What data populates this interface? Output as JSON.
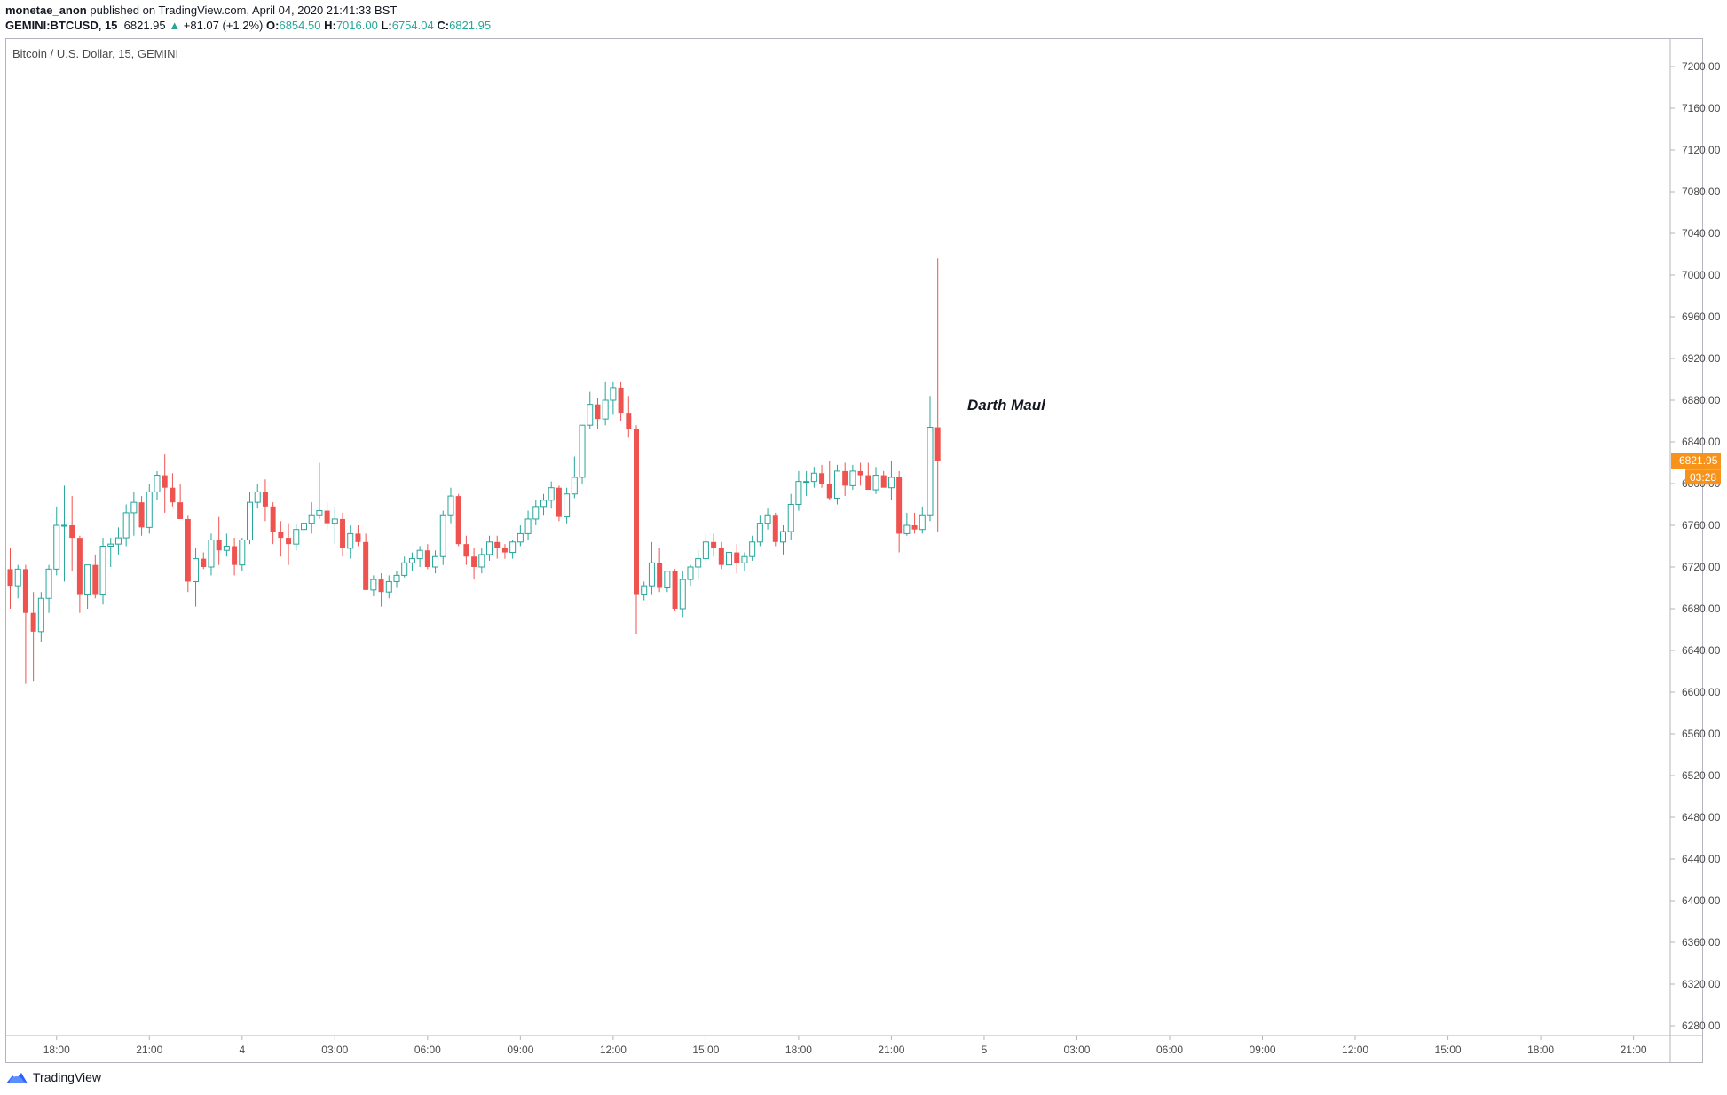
{
  "header": {
    "author": "monetae_anon",
    "published_text": "published on TradingView.com, April 04, 2020 21:41:33 BST",
    "symbol": "GEMINI:BTCUSD, 15",
    "last": "6821.95",
    "change_arrow": "▲",
    "change": "+81.07 (+1.2%)",
    "o_label": "O:",
    "o_value": "6854.50",
    "h_label": "H:",
    "h_value": "7016.00",
    "l_label": "L:",
    "l_value": "6754.04",
    "c_label": "C:",
    "c_value": "6821.95"
  },
  "legend_title": "Bitcoin / U.S. Dollar, 15, GEMINI",
  "annotation": "Darth Maul",
  "footer": {
    "brand": "TradingView"
  },
  "colors": {
    "up": "#26a69a",
    "down": "#ef5350",
    "price_tag": "#f7931a",
    "axis_text": "#4a4a4a"
  },
  "chart_data": {
    "type": "candlestick",
    "ylim": [
      6260,
      7220
    ],
    "yticks": [
      7200,
      7160,
      7120,
      7080,
      7040,
      7000,
      6960,
      6920,
      6880,
      6840,
      6800,
      6760,
      6720,
      6680,
      6640,
      6600,
      6560,
      6520,
      6480,
      6440,
      6400,
      6360,
      6320,
      6280
    ],
    "ytick_labels": [
      "7200.00",
      "7160.00",
      "7120.00",
      "7080.00",
      "7040.00",
      "7000.00",
      "6960.00",
      "6920.00",
      "6880.00",
      "6840.00",
      "6800.00",
      "6760.00",
      "6720.00",
      "6680.00",
      "6640.00",
      "6600.00",
      "6560.00",
      "6520.00",
      "6480.00",
      "6440.00",
      "6400.00",
      "6360.00",
      "6320.00",
      "6280.00"
    ],
    "xticks": [
      "18:00",
      "21:00",
      "4",
      "03:00",
      "06:00",
      "09:00",
      "12:00",
      "15:00",
      "18:00",
      "21:00",
      "5",
      "03:00",
      "06:00",
      "09:00",
      "12:00",
      "15:00",
      "18:00",
      "21:00"
    ],
    "bars_per_tick": 12,
    "first_tick_bar": 6,
    "last_price": "6821.95",
    "countdown": "03:28",
    "candles": [
      [
        6718,
        6738,
        6680,
        6702
      ],
      [
        6702,
        6722,
        6690,
        6718
      ],
      [
        6718,
        6722,
        6608,
        6676
      ],
      [
        6676,
        6696,
        6610,
        6658
      ],
      [
        6658,
        6696,
        6648,
        6690
      ],
      [
        6690,
        6722,
        6676,
        6718
      ],
      [
        6718,
        6778,
        6712,
        6760
      ],
      [
        6760,
        6798,
        6706,
        6760
      ],
      [
        6760,
        6788,
        6716,
        6748
      ],
      [
        6748,
        6750,
        6676,
        6694
      ],
      [
        6694,
        6720,
        6680,
        6722
      ],
      [
        6722,
        6732,
        6690,
        6694
      ],
      [
        6694,
        6748,
        6684,
        6740
      ],
      [
        6740,
        6748,
        6720,
        6742
      ],
      [
        6742,
        6758,
        6732,
        6748
      ],
      [
        6748,
        6780,
        6740,
        6772
      ],
      [
        6772,
        6792,
        6750,
        6782
      ],
      [
        6782,
        6788,
        6750,
        6758
      ],
      [
        6758,
        6800,
        6752,
        6792
      ],
      [
        6792,
        6812,
        6784,
        6808
      ],
      [
        6808,
        6828,
        6772,
        6796
      ],
      [
        6796,
        6810,
        6778,
        6782
      ],
      [
        6782,
        6800,
        6774,
        6766
      ],
      [
        6766,
        6770,
        6696,
        6706
      ],
      [
        6706,
        6738,
        6682,
        6728
      ],
      [
        6728,
        6734,
        6718,
        6720
      ],
      [
        6720,
        6752,
        6712,
        6746
      ],
      [
        6746,
        6768,
        6722,
        6736
      ],
      [
        6736,
        6752,
        6730,
        6740
      ],
      [
        6740,
        6748,
        6712,
        6722
      ],
      [
        6722,
        6748,
        6716,
        6746
      ],
      [
        6746,
        6792,
        6742,
        6782
      ],
      [
        6782,
        6800,
        6776,
        6792
      ],
      [
        6792,
        6804,
        6764,
        6778
      ],
      [
        6778,
        6782,
        6742,
        6754
      ],
      [
        6754,
        6764,
        6730,
        6748
      ],
      [
        6748,
        6762,
        6722,
        6742
      ],
      [
        6742,
        6762,
        6736,
        6756
      ],
      [
        6756,
        6770,
        6746,
        6762
      ],
      [
        6762,
        6782,
        6752,
        6770
      ],
      [
        6770,
        6820,
        6766,
        6774
      ],
      [
        6774,
        6782,
        6756,
        6762
      ],
      [
        6762,
        6778,
        6742,
        6766
      ],
      [
        6766,
        6772,
        6730,
        6738
      ],
      [
        6738,
        6760,
        6728,
        6752
      ],
      [
        6752,
        6760,
        6740,
        6744
      ],
      [
        6744,
        6752,
        6698,
        6698
      ],
      [
        6698,
        6712,
        6692,
        6708
      ],
      [
        6708,
        6714,
        6682,
        6696
      ],
      [
        6696,
        6712,
        6690,
        6706
      ],
      [
        6706,
        6716,
        6700,
        6712
      ],
      [
        6712,
        6730,
        6710,
        6724
      ],
      [
        6724,
        6734,
        6716,
        6728
      ],
      [
        6728,
        6740,
        6720,
        6736
      ],
      [
        6736,
        6742,
        6718,
        6720
      ],
      [
        6720,
        6736,
        6714,
        6730
      ],
      [
        6730,
        6774,
        6722,
        6770
      ],
      [
        6770,
        6796,
        6762,
        6788
      ],
      [
        6788,
        6790,
        6740,
        6742
      ],
      [
        6742,
        6750,
        6722,
        6730
      ],
      [
        6730,
        6738,
        6708,
        6720
      ],
      [
        6720,
        6738,
        6714,
        6732
      ],
      [
        6732,
        6750,
        6726,
        6744
      ],
      [
        6744,
        6750,
        6728,
        6738
      ],
      [
        6738,
        6742,
        6728,
        6734
      ],
      [
        6734,
        6746,
        6728,
        6744
      ],
      [
        6744,
        6760,
        6740,
        6752
      ],
      [
        6752,
        6774,
        6746,
        6766
      ],
      [
        6766,
        6784,
        6760,
        6778
      ],
      [
        6778,
        6790,
        6770,
        6784
      ],
      [
        6784,
        6802,
        6776,
        6796
      ],
      [
        6796,
        6798,
        6764,
        6768
      ],
      [
        6768,
        6796,
        6762,
        6790
      ],
      [
        6790,
        6826,
        6786,
        6806
      ],
      [
        6806,
        6850,
        6800,
        6856
      ],
      [
        6856,
        6888,
        6852,
        6876
      ],
      [
        6876,
        6882,
        6852,
        6862
      ],
      [
        6862,
        6898,
        6856,
        6880
      ],
      [
        6880,
        6898,
        6866,
        6892
      ],
      [
        6892,
        6898,
        6860,
        6868
      ],
      [
        6868,
        6884,
        6844,
        6852
      ],
      [
        6852,
        6856,
        6656,
        6694
      ],
      [
        6694,
        6706,
        6688,
        6702
      ],
      [
        6702,
        6744,
        6694,
        6724
      ],
      [
        6724,
        6738,
        6696,
        6700
      ],
      [
        6700,
        6716,
        6696,
        6716
      ],
      [
        6716,
        6718,
        6678,
        6680
      ],
      [
        6680,
        6716,
        6672,
        6708
      ],
      [
        6708,
        6722,
        6702,
        6720
      ],
      [
        6720,
        6736,
        6708,
        6728
      ],
      [
        6728,
        6752,
        6724,
        6744
      ],
      [
        6744,
        6752,
        6730,
        6738
      ],
      [
        6738,
        6744,
        6718,
        6722
      ],
      [
        6722,
        6740,
        6712,
        6734
      ],
      [
        6734,
        6742,
        6714,
        6724
      ],
      [
        6724,
        6734,
        6716,
        6730
      ],
      [
        6730,
        6750,
        6726,
        6744
      ],
      [
        6744,
        6770,
        6740,
        6762
      ],
      [
        6762,
        6776,
        6756,
        6770
      ],
      [
        6770,
        6772,
        6740,
        6744
      ],
      [
        6744,
        6760,
        6732,
        6754
      ],
      [
        6754,
        6790,
        6746,
        6780
      ],
      [
        6780,
        6812,
        6774,
        6802
      ],
      [
        6802,
        6812,
        6788,
        6802
      ],
      [
        6802,
        6816,
        6796,
        6810
      ],
      [
        6810,
        6818,
        6796,
        6800
      ],
      [
        6800,
        6822,
        6784,
        6786
      ],
      [
        6786,
        6818,
        6780,
        6812
      ],
      [
        6812,
        6820,
        6788,
        6798
      ],
      [
        6798,
        6818,
        6794,
        6812
      ],
      [
        6812,
        6820,
        6798,
        6808
      ],
      [
        6808,
        6820,
        6796,
        6794
      ],
      [
        6794,
        6816,
        6790,
        6808
      ],
      [
        6808,
        6812,
        6798,
        6796
      ],
      [
        6796,
        6822,
        6784,
        6806
      ],
      [
        6806,
        6812,
        6734,
        6752
      ],
      [
        6752,
        6772,
        6750,
        6760
      ],
      [
        6760,
        6772,
        6752,
        6756
      ],
      [
        6756,
        6778,
        6752,
        6770
      ],
      [
        6770,
        6884,
        6764,
        6854
      ],
      [
        6854,
        7016,
        6754,
        6822
      ]
    ]
  }
}
